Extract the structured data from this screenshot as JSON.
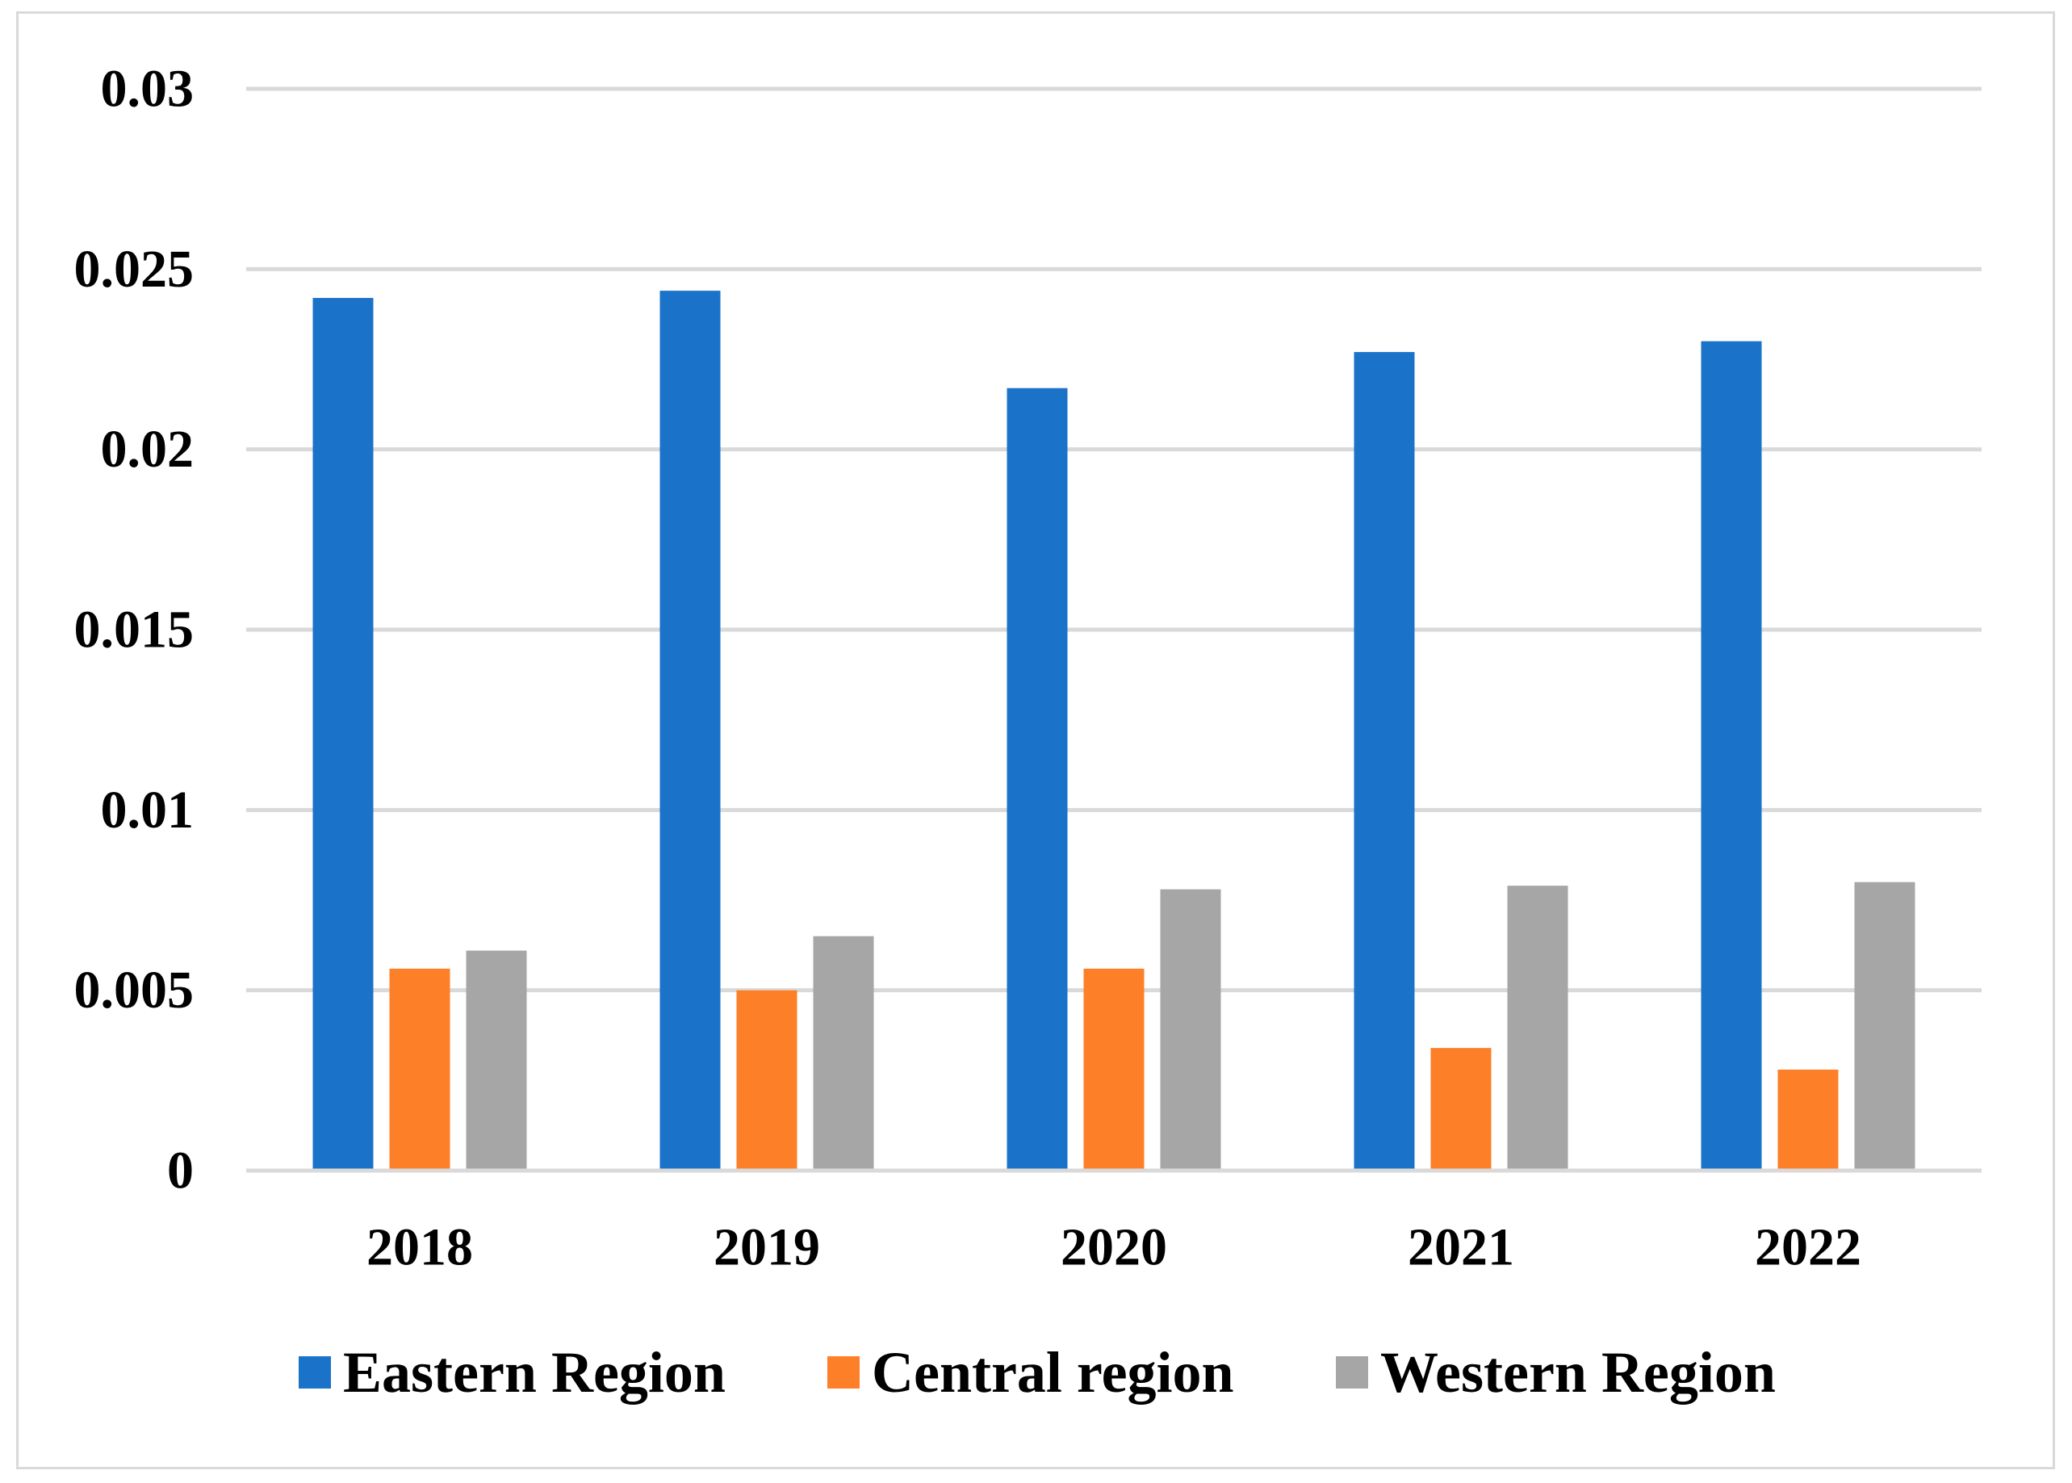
{
  "chart_data": {
    "type": "bar",
    "title": "",
    "xlabel": "",
    "ylabel": "",
    "categories": [
      "2018",
      "2019",
      "2020",
      "2021",
      "2022"
    ],
    "series": [
      {
        "name": "Eastern Region",
        "color": "#1a73c8",
        "values": [
          0.0242,
          0.0244,
          0.0217,
          0.0227,
          0.023
        ]
      },
      {
        "name": "Central region",
        "color": "#fd7f28",
        "values": [
          0.0056,
          0.005,
          0.0056,
          0.0034,
          0.0028
        ]
      },
      {
        "name": "Western Region",
        "color": "#a6a6a6",
        "values": [
          0.0061,
          0.0065,
          0.0078,
          0.0079,
          0.008
        ]
      }
    ],
    "ylim": [
      0,
      0.03
    ],
    "yticks": [
      0,
      0.005,
      0.01,
      0.015,
      0.02,
      0.025,
      0.03
    ],
    "ytick_labels": [
      "0",
      "0.005",
      "0.01",
      "0.015",
      "0.02",
      "0.025",
      "0.03"
    ],
    "grid": true,
    "legend_position": "bottom"
  }
}
